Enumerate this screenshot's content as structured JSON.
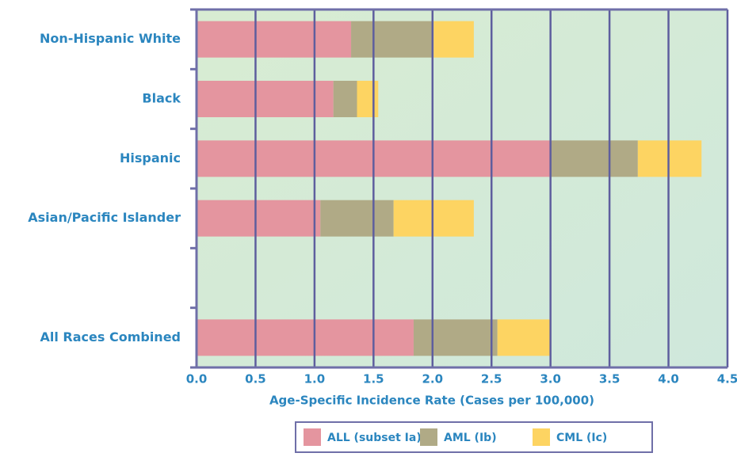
{
  "chart_data": {
    "type": "stacked-bar-horizontal",
    "x_label": "Age-Specific Incidence Rate (Cases per 100,000)",
    "categories": [
      "Non-Hispanic White",
      "Black",
      "Hispanic",
      "Asian/Pacific Islander",
      null,
      "All Races Combined"
    ],
    "series": [
      {
        "name": "ALL (subset Ia)",
        "color": "#e4959f",
        "values": [
          1.31,
          1.16,
          3.0,
          1.05,
          null,
          1.84
        ]
      },
      {
        "name": "AML (Ib)",
        "color": "#b0aa86",
        "values": [
          0.7,
          0.2,
          0.74,
          0.62,
          null,
          0.71
        ]
      },
      {
        "name": "CML (Ic)",
        "color": "#fdd462",
        "values": [
          0.34,
          0.18,
          0.54,
          0.68,
          null,
          0.45
        ]
      }
    ],
    "xlim": [
      0,
      4.5
    ],
    "xticks": [
      {
        "value": 0,
        "label": "0.0"
      },
      0.5,
      {
        "value": 1,
        "label": "1.0"
      },
      1.5,
      {
        "value": 2,
        "label": "2.0"
      },
      2.5,
      {
        "value": 3,
        "label": "3.0"
      },
      3.5,
      {
        "value": 4,
        "label": "4.0"
      },
      4.5
    ],
    "grid": true
  }
}
